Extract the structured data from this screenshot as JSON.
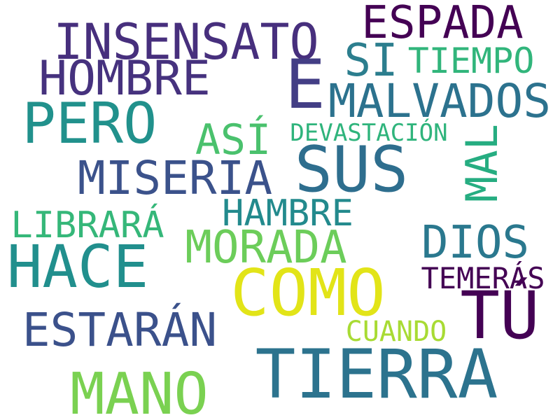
{
  "words": [
    {
      "text": "ESPADA",
      "color": "#440154"
    },
    {
      "text": "INSENSATO",
      "color": "#472f7d"
    },
    {
      "text": "SI",
      "color": "#2c7e8e"
    },
    {
      "text": "TIEMPO",
      "color": "#31b57b"
    },
    {
      "text": "HOMBRE",
      "color": "#46327e"
    },
    {
      "text": "E",
      "color": "#433e85"
    },
    {
      "text": "MALVADOS",
      "color": "#2c728e"
    },
    {
      "text": "PERO",
      "color": "#21918c"
    },
    {
      "text": "ASÍ",
      "color": "#4ac16d"
    },
    {
      "text": "DEVASTACIÓN",
      "color": "#2fb47c"
    },
    {
      "text": "SUS",
      "color": "#2e6e8e"
    },
    {
      "text": "MAL",
      "color": "#26ad81"
    },
    {
      "text": "MISERIA",
      "color": "#3b528b"
    },
    {
      "text": "HAMBRE",
      "color": "#238a8d"
    },
    {
      "text": "LIBRARÁ",
      "color": "#35b779"
    },
    {
      "text": "MORADA",
      "color": "#6ccd5a"
    },
    {
      "text": "DIOS",
      "color": "#2a788e"
    },
    {
      "text": "HACE",
      "color": "#218f8d"
    },
    {
      "text": "COMO",
      "color": "#e2e418"
    },
    {
      "text": "TEMERÁS",
      "color": "#440154"
    },
    {
      "text": "TÚ",
      "color": "#440154"
    },
    {
      "text": "ESTARÁN",
      "color": "#3b518b"
    },
    {
      "text": "CUANDO",
      "color": "#a8db34"
    },
    {
      "text": "TIERRA",
      "color": "#2c738e"
    },
    {
      "text": "MANO",
      "color": "#7ad151"
    }
  ]
}
